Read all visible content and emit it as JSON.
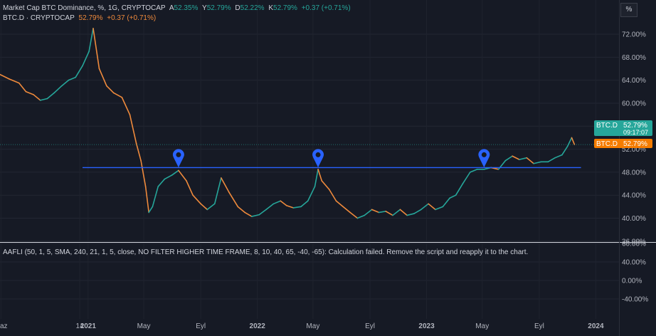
{
  "header": {
    "title": "Market Cap BTC Dominance, %, 1G, CRYPTOCAP",
    "open_label": "A",
    "open_value": "52.35%",
    "high_label": "Y",
    "high_value": "52.79%",
    "low_label": "D",
    "low_value": "52.22%",
    "close_label": "K",
    "close_value": "52.79%",
    "change": "+0.37 (+0.71%)",
    "symbol_line": "BTC.D · CRYPTOCAP",
    "symbol_value": "52.79%",
    "symbol_change": "+0.37 (+0.71%)"
  },
  "scale_button": "%",
  "price_labels": {
    "primary_name": "BTC.D",
    "primary_value": "52.79%",
    "countdown": "09:17:07",
    "secondary_name": "BTC.D",
    "secondary_value": "52.79%"
  },
  "indicator": {
    "message": "AAFLI (50, 1, 5, SMA, 240, 21, 1, 5, close, NO FILTER HIGHER TIME FRAME, 8, 10, 40, 65, -40, -65): Calculation failed. Remove the script and reapply it to the chart.",
    "y_ticks": [
      "60.00%",
      "40.00%",
      "0.00%",
      "-40.00%"
    ]
  },
  "colors": {
    "background": "#161a25",
    "candle_up": "#26a69a",
    "candle_down": "#ef8a3c",
    "resistance_line": "#2962ff",
    "marker": "#2962ff",
    "primary_badge": "#26a69a",
    "secondary_badge": "#f57c00"
  },
  "icons": [
    "map-pin-icon",
    "map-pin-icon",
    "map-pin-icon"
  ],
  "chart_data": {
    "type": "line",
    "title": "Market Cap BTC Dominance, %, 1G, CRYPTOCAP",
    "xlabel": "",
    "ylabel": "",
    "x_tick_labels": [
      "az",
      "14",
      "2021",
      "May",
      "Eyl",
      "2022",
      "May",
      "Eyl",
      "2023",
      "May",
      "Eyl",
      "2024"
    ],
    "y_tick_labels": [
      "72.00%",
      "68.00%",
      "64.00%",
      "60.00%",
      "56.00%",
      "52.00%",
      "48.00%",
      "44.00%",
      "40.00%",
      "36.00%"
    ],
    "ylim": [
      35.5,
      75.5
    ],
    "xlim": [
      "2020-06-25",
      "2024-02-20"
    ],
    "grid": true,
    "series": [
      {
        "x": [
          "2020-06-25",
          "2020-07-15",
          "2020-08-05",
          "2020-08-20",
          "2020-09-05",
          "2020-09-20",
          "2020-10-05",
          "2020-10-20",
          "2020-11-05",
          "2020-11-20",
          "2020-12-05",
          "2020-12-20",
          "2021-01-03",
          "2021-01-12",
          "2021-01-25",
          "2021-02-10",
          "2021-02-25",
          "2021-03-15",
          "2021-04-01",
          "2021-04-15",
          "2021-04-25",
          "2021-05-05",
          "2021-05-12",
          "2021-05-20",
          "2021-06-01",
          "2021-06-15",
          "2021-07-01",
          "2021-07-15",
          "2021-08-01",
          "2021-08-15",
          "2021-09-01",
          "2021-09-15",
          "2021-10-01",
          "2021-10-15",
          "2021-11-01",
          "2021-11-20",
          "2021-12-05",
          "2021-12-20",
          "2022-01-05",
          "2022-01-20",
          "2022-02-05",
          "2022-02-20",
          "2022-03-05",
          "2022-03-20",
          "2022-04-05",
          "2022-04-20",
          "2022-05-05",
          "2022-05-12",
          "2022-05-20",
          "2022-06-05",
          "2022-06-20",
          "2022-07-05",
          "2022-07-20",
          "2022-08-05",
          "2022-08-20",
          "2022-09-05",
          "2022-09-20",
          "2022-10-05",
          "2022-10-20",
          "2022-11-05",
          "2022-11-20",
          "2022-12-05",
          "2022-12-20",
          "2023-01-05",
          "2023-01-20",
          "2023-02-05",
          "2023-02-20",
          "2023-03-05",
          "2023-03-20",
          "2023-04-05",
          "2023-04-20",
          "2023-05-05",
          "2023-05-20",
          "2023-06-05",
          "2023-06-20",
          "2023-07-05",
          "2023-07-20",
          "2023-08-05",
          "2023-08-20",
          "2023-09-05",
          "2023-09-20",
          "2023-10-05",
          "2023-10-20",
          "2023-11-01",
          "2023-11-10",
          "2023-11-16"
        ],
        "y": [
          65.0,
          64.2,
          63.5,
          62.0,
          61.5,
          60.5,
          60.8,
          61.8,
          63.0,
          64.0,
          64.5,
          66.5,
          69.0,
          73.0,
          66.0,
          63.0,
          61.8,
          61.0,
          58.0,
          53.0,
          50.0,
          45.5,
          41.0,
          42.0,
          45.5,
          46.8,
          47.5,
          48.3,
          46.5,
          44.0,
          42.5,
          41.5,
          42.5,
          47.0,
          44.5,
          42.0,
          41.0,
          40.3,
          40.6,
          41.5,
          42.5,
          43.0,
          42.2,
          41.8,
          42.0,
          43.0,
          45.5,
          48.5,
          46.5,
          45.0,
          43.0,
          42.0,
          41.0,
          40.0,
          40.5,
          41.5,
          41.0,
          41.2,
          40.5,
          41.5,
          40.5,
          40.8,
          41.5,
          42.5,
          41.5,
          42.0,
          43.5,
          44.0,
          46.0,
          48.0,
          48.5,
          48.5,
          48.8,
          48.5,
          50.0,
          50.8,
          50.2,
          50.5,
          49.5,
          49.8,
          49.8,
          50.5,
          51.0,
          52.5,
          54.0,
          52.8
        ]
      }
    ],
    "annotations": {
      "horizontal_line_value": 48.8,
      "horizontal_line_range": [
        "2020-12-20",
        "2023-11-30"
      ],
      "markers": [
        {
          "x": "2021-07-15",
          "y": 48.8
        },
        {
          "x": "2022-05-12",
          "y": 48.8
        },
        {
          "x": "2023-05-05",
          "y": 48.8
        }
      ]
    }
  }
}
